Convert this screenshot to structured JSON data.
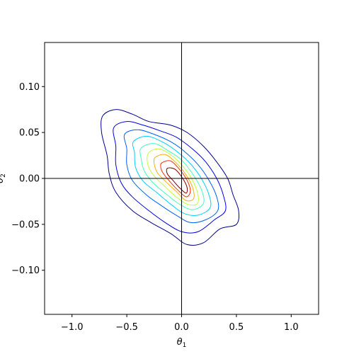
{
  "chart_data": {
    "type": "contour",
    "xlabel": "θ1",
    "ylabel": "θ2",
    "xlim": [
      -1.25,
      1.25
    ],
    "ylim": [
      -0.148,
      0.148
    ],
    "xticks": [
      -1.0,
      -0.5,
      0.0,
      0.5,
      1.0
    ],
    "xtick_labels": [
      "−1.0",
      "−0.5",
      "0.0",
      "0.5",
      "1.0"
    ],
    "yticks": [
      -0.1,
      -0.05,
      0.0,
      0.05,
      0.1
    ],
    "ytick_labels": [
      "−0.10",
      "−0.05",
      "0.00",
      "0.05",
      "0.10"
    ],
    "reference_lines": {
      "x": 0.0,
      "y": 0.0
    },
    "colormap": "jet",
    "grid": false,
    "contours": [
      {
        "level": 1,
        "color": "#00008f",
        "points": [
          [
            -0.72,
            0.068
          ],
          [
            -0.6,
            0.075
          ],
          [
            -0.45,
            0.07
          ],
          [
            -0.3,
            0.062
          ],
          [
            -0.1,
            0.058
          ],
          [
            0.05,
            0.05
          ],
          [
            0.2,
            0.035
          ],
          [
            0.32,
            0.018
          ],
          [
            0.42,
            0.0
          ],
          [
            0.47,
            -0.018
          ],
          [
            0.52,
            -0.035
          ],
          [
            0.5,
            -0.05
          ],
          [
            0.35,
            -0.055
          ],
          [
            0.2,
            -0.07
          ],
          [
            0.05,
            -0.072
          ],
          [
            -0.1,
            -0.06
          ],
          [
            -0.28,
            -0.048
          ],
          [
            -0.45,
            -0.035
          ],
          [
            -0.6,
            -0.015
          ],
          [
            -0.66,
            0.005
          ],
          [
            -0.68,
            0.025
          ],
          [
            -0.73,
            0.05
          ]
        ]
      },
      {
        "level": 2,
        "color": "#0000e8",
        "points": [
          [
            -0.62,
            0.055
          ],
          [
            -0.5,
            0.062
          ],
          [
            -0.35,
            0.058
          ],
          [
            -0.2,
            0.052
          ],
          [
            -0.05,
            0.045
          ],
          [
            0.1,
            0.032
          ],
          [
            0.22,
            0.018
          ],
          [
            0.32,
            0.0
          ],
          [
            0.38,
            -0.018
          ],
          [
            0.4,
            -0.035
          ],
          [
            0.3,
            -0.045
          ],
          [
            0.15,
            -0.058
          ],
          [
            0.0,
            -0.058
          ],
          [
            -0.15,
            -0.048
          ],
          [
            -0.3,
            -0.035
          ],
          [
            -0.45,
            -0.02
          ],
          [
            -0.55,
            -0.005
          ],
          [
            -0.6,
            0.015
          ],
          [
            -0.6,
            0.035
          ]
        ]
      },
      {
        "level": 3,
        "color": "#0060ff",
        "points": [
          [
            -0.52,
            0.048
          ],
          [
            -0.4,
            0.053
          ],
          [
            -0.25,
            0.048
          ],
          [
            -0.1,
            0.04
          ],
          [
            0.02,
            0.03
          ],
          [
            0.15,
            0.015
          ],
          [
            0.25,
            -0.002
          ],
          [
            0.32,
            -0.02
          ],
          [
            0.33,
            -0.035
          ],
          [
            0.22,
            -0.045
          ],
          [
            0.08,
            -0.048
          ],
          [
            -0.05,
            -0.04
          ],
          [
            -0.18,
            -0.03
          ],
          [
            -0.32,
            -0.018
          ],
          [
            -0.45,
            -0.002
          ],
          [
            -0.5,
            0.015
          ],
          [
            -0.5,
            0.032
          ]
        ]
      },
      {
        "level": 4,
        "color": "#00d0ff",
        "points": [
          [
            -0.44,
            0.04
          ],
          [
            -0.32,
            0.046
          ],
          [
            -0.18,
            0.04
          ],
          [
            -0.05,
            0.03
          ],
          [
            0.08,
            0.016
          ],
          [
            0.18,
            0.0
          ],
          [
            0.25,
            -0.018
          ],
          [
            0.26,
            -0.032
          ],
          [
            0.15,
            -0.04
          ],
          [
            0.02,
            -0.038
          ],
          [
            -0.1,
            -0.028
          ],
          [
            -0.22,
            -0.016
          ],
          [
            -0.35,
            -0.003
          ],
          [
            -0.42,
            0.012
          ],
          [
            -0.43,
            0.028
          ]
        ]
      },
      {
        "level": 5,
        "color": "#40ffb8",
        "points": [
          [
            -0.37,
            0.033
          ],
          [
            -0.25,
            0.038
          ],
          [
            -0.12,
            0.03
          ],
          [
            0.0,
            0.02
          ],
          [
            0.1,
            0.005
          ],
          [
            0.18,
            -0.012
          ],
          [
            0.2,
            -0.027
          ],
          [
            0.1,
            -0.034
          ],
          [
            -0.02,
            -0.028
          ],
          [
            -0.13,
            -0.018
          ],
          [
            -0.25,
            -0.006
          ],
          [
            -0.34,
            0.008
          ],
          [
            -0.37,
            0.022
          ]
        ]
      },
      {
        "level": 6,
        "color": "#c0ff36",
        "points": [
          [
            -0.3,
            0.028
          ],
          [
            -0.2,
            0.032
          ],
          [
            -0.08,
            0.024
          ],
          [
            0.02,
            0.012
          ],
          [
            0.1,
            -0.002
          ],
          [
            0.15,
            -0.018
          ],
          [
            0.14,
            -0.028
          ],
          [
            0.05,
            -0.028
          ],
          [
            -0.05,
            -0.02
          ],
          [
            -0.16,
            -0.008
          ],
          [
            -0.26,
            0.004
          ],
          [
            -0.31,
            0.016
          ]
        ]
      },
      {
        "level": 7,
        "color": "#ffb000",
        "points": [
          [
            -0.24,
            0.023
          ],
          [
            -0.15,
            0.026
          ],
          [
            -0.05,
            0.017
          ],
          [
            0.04,
            0.004
          ],
          [
            0.1,
            -0.01
          ],
          [
            0.11,
            -0.022
          ],
          [
            0.04,
            -0.024
          ],
          [
            -0.05,
            -0.014
          ],
          [
            -0.14,
            -0.004
          ],
          [
            -0.22,
            0.006
          ],
          [
            -0.25,
            0.016
          ]
        ]
      },
      {
        "level": 8,
        "color": "#ff3000",
        "points": [
          [
            -0.18,
            0.017
          ],
          [
            -0.1,
            0.019
          ],
          [
            -0.02,
            0.01
          ],
          [
            0.05,
            -0.002
          ],
          [
            0.08,
            -0.014
          ],
          [
            0.04,
            -0.02
          ],
          [
            -0.04,
            -0.012
          ],
          [
            -0.11,
            -0.003
          ],
          [
            -0.17,
            0.006
          ],
          [
            -0.19,
            0.012
          ]
        ]
      },
      {
        "level": 9,
        "color": "#800000",
        "points": [
          [
            -0.13,
            0.011
          ],
          [
            -0.06,
            0.01
          ],
          [
            0.01,
            0.0
          ],
          [
            0.05,
            -0.01
          ],
          [
            0.04,
            -0.016
          ],
          [
            -0.02,
            -0.01
          ],
          [
            -0.08,
            -0.002
          ],
          [
            -0.13,
            0.005
          ]
        ]
      }
    ]
  }
}
